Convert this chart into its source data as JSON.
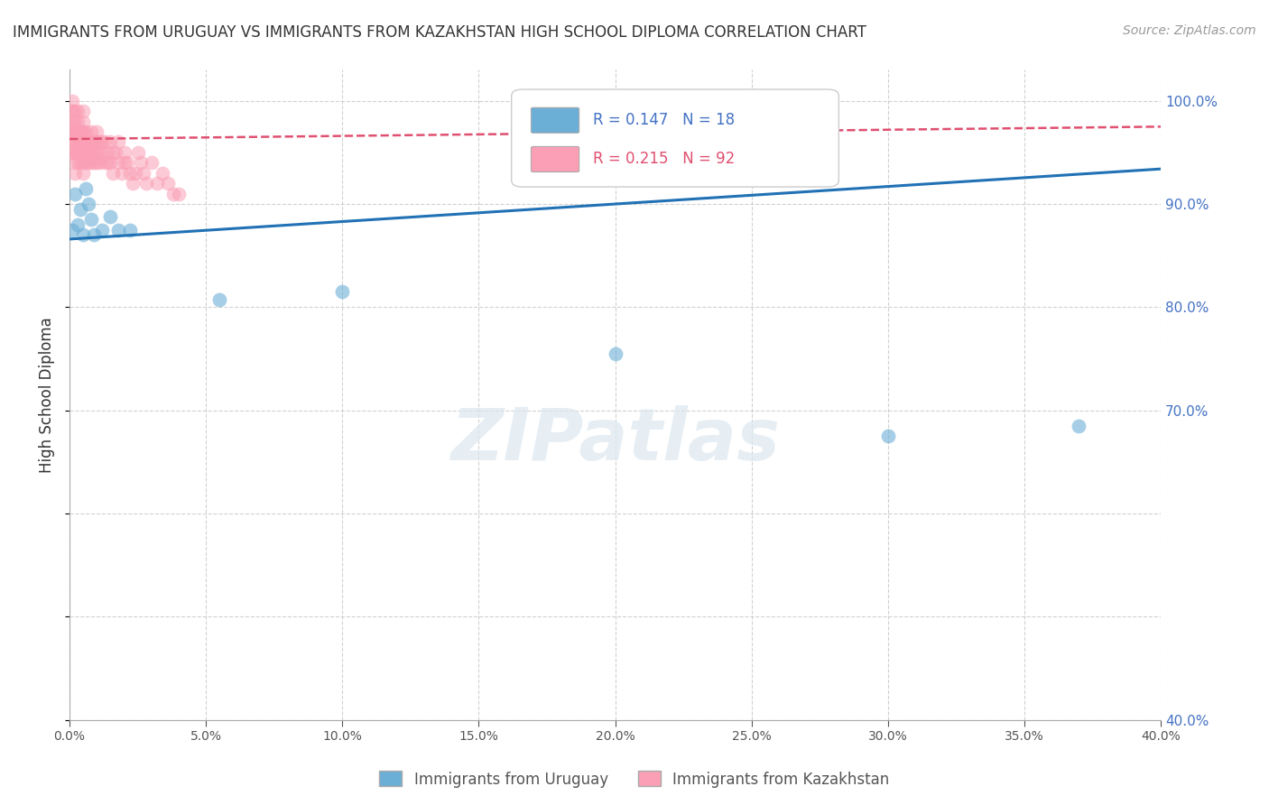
{
  "title": "IMMIGRANTS FROM URUGUAY VS IMMIGRANTS FROM KAZAKHSTAN HIGH SCHOOL DIPLOMA CORRELATION CHART",
  "source": "Source: ZipAtlas.com",
  "ylabel": "High School Diploma",
  "legend_uruguay_R": "R = 0.147",
  "legend_uruguay_N": "N = 18",
  "legend_kazakhstan_R": "R = 0.215",
  "legend_kazakhstan_N": "N = 92",
  "xlim": [
    0.0,
    0.4
  ],
  "ylim": [
    0.4,
    1.03
  ],
  "color_uruguay": "#6baed6",
  "color_kazakhstan": "#fa9fb5",
  "color_trendline_uruguay": "#2171b5",
  "color_trendline_kazakhstan": "#e05070",
  "watermark": "ZIPatlas",
  "uruguay_x": [
    0.001,
    0.002,
    0.003,
    0.004,
    0.005,
    0.006,
    0.007,
    0.008,
    0.009,
    0.012,
    0.015,
    0.018,
    0.022,
    0.055,
    0.1,
    0.2,
    0.3,
    0.37
  ],
  "uruguay_y": [
    0.875,
    0.91,
    0.88,
    0.895,
    0.87,
    0.915,
    0.9,
    0.885,
    0.87,
    0.875,
    0.888,
    0.875,
    0.875,
    0.807,
    0.815,
    0.755,
    0.675,
    0.685
  ],
  "kazakhstan_x": [
    0.001,
    0.001,
    0.001,
    0.001,
    0.001,
    0.001,
    0.001,
    0.001,
    0.001,
    0.002,
    0.002,
    0.002,
    0.002,
    0.002,
    0.002,
    0.002,
    0.002,
    0.002,
    0.002,
    0.003,
    0.003,
    0.003,
    0.003,
    0.003,
    0.003,
    0.003,
    0.003,
    0.004,
    0.004,
    0.004,
    0.004,
    0.004,
    0.005,
    0.005,
    0.005,
    0.005,
    0.005,
    0.005,
    0.005,
    0.005,
    0.005,
    0.006,
    0.006,
    0.006,
    0.006,
    0.007,
    0.007,
    0.007,
    0.008,
    0.008,
    0.008,
    0.008,
    0.009,
    0.009,
    0.009,
    0.01,
    0.01,
    0.01,
    0.01,
    0.011,
    0.011,
    0.011,
    0.012,
    0.012,
    0.013,
    0.013,
    0.014,
    0.014,
    0.015,
    0.015,
    0.016,
    0.016,
    0.017,
    0.018,
    0.018,
    0.019,
    0.02,
    0.02,
    0.021,
    0.022,
    0.023,
    0.024,
    0.025,
    0.026,
    0.027,
    0.028,
    0.03,
    0.032,
    0.034,
    0.036,
    0.038,
    0.04
  ],
  "kazakhstan_y": [
    1.0,
    0.99,
    0.99,
    0.98,
    0.98,
    0.97,
    0.97,
    0.96,
    0.95,
    0.99,
    0.98,
    0.97,
    0.97,
    0.96,
    0.96,
    0.95,
    0.95,
    0.94,
    0.93,
    0.99,
    0.98,
    0.97,
    0.97,
    0.96,
    0.95,
    0.95,
    0.94,
    0.97,
    0.96,
    0.96,
    0.95,
    0.94,
    0.99,
    0.98,
    0.97,
    0.97,
    0.96,
    0.96,
    0.95,
    0.94,
    0.93,
    0.97,
    0.96,
    0.95,
    0.94,
    0.96,
    0.95,
    0.94,
    0.97,
    0.96,
    0.95,
    0.94,
    0.96,
    0.95,
    0.94,
    0.97,
    0.96,
    0.95,
    0.94,
    0.96,
    0.95,
    0.94,
    0.96,
    0.95,
    0.96,
    0.94,
    0.95,
    0.94,
    0.96,
    0.94,
    0.95,
    0.93,
    0.95,
    0.96,
    0.94,
    0.93,
    0.95,
    0.94,
    0.94,
    0.93,
    0.92,
    0.93,
    0.95,
    0.94,
    0.93,
    0.92,
    0.94,
    0.92,
    0.93,
    0.92,
    0.91,
    0.91
  ],
  "trendline_uru_x0": 0.0,
  "trendline_uru_y0": 0.866,
  "trendline_uru_x1": 0.4,
  "trendline_uru_y1": 0.934,
  "trendline_kaz_x0": 0.0,
  "trendline_kaz_y0": 0.963,
  "trendline_kaz_x1": 0.4,
  "trendline_kaz_y1": 0.975,
  "ylabel_right_vals": [
    1.0,
    0.9,
    0.8,
    0.7,
    0.4
  ],
  "ylabel_right_labels": [
    "100.0%",
    "90.0%",
    "80.0%",
    "70.0%",
    "40.0%"
  ],
  "background_color": "#ffffff",
  "grid_color": "#cccccc",
  "axis_color": "#aaaaaa"
}
